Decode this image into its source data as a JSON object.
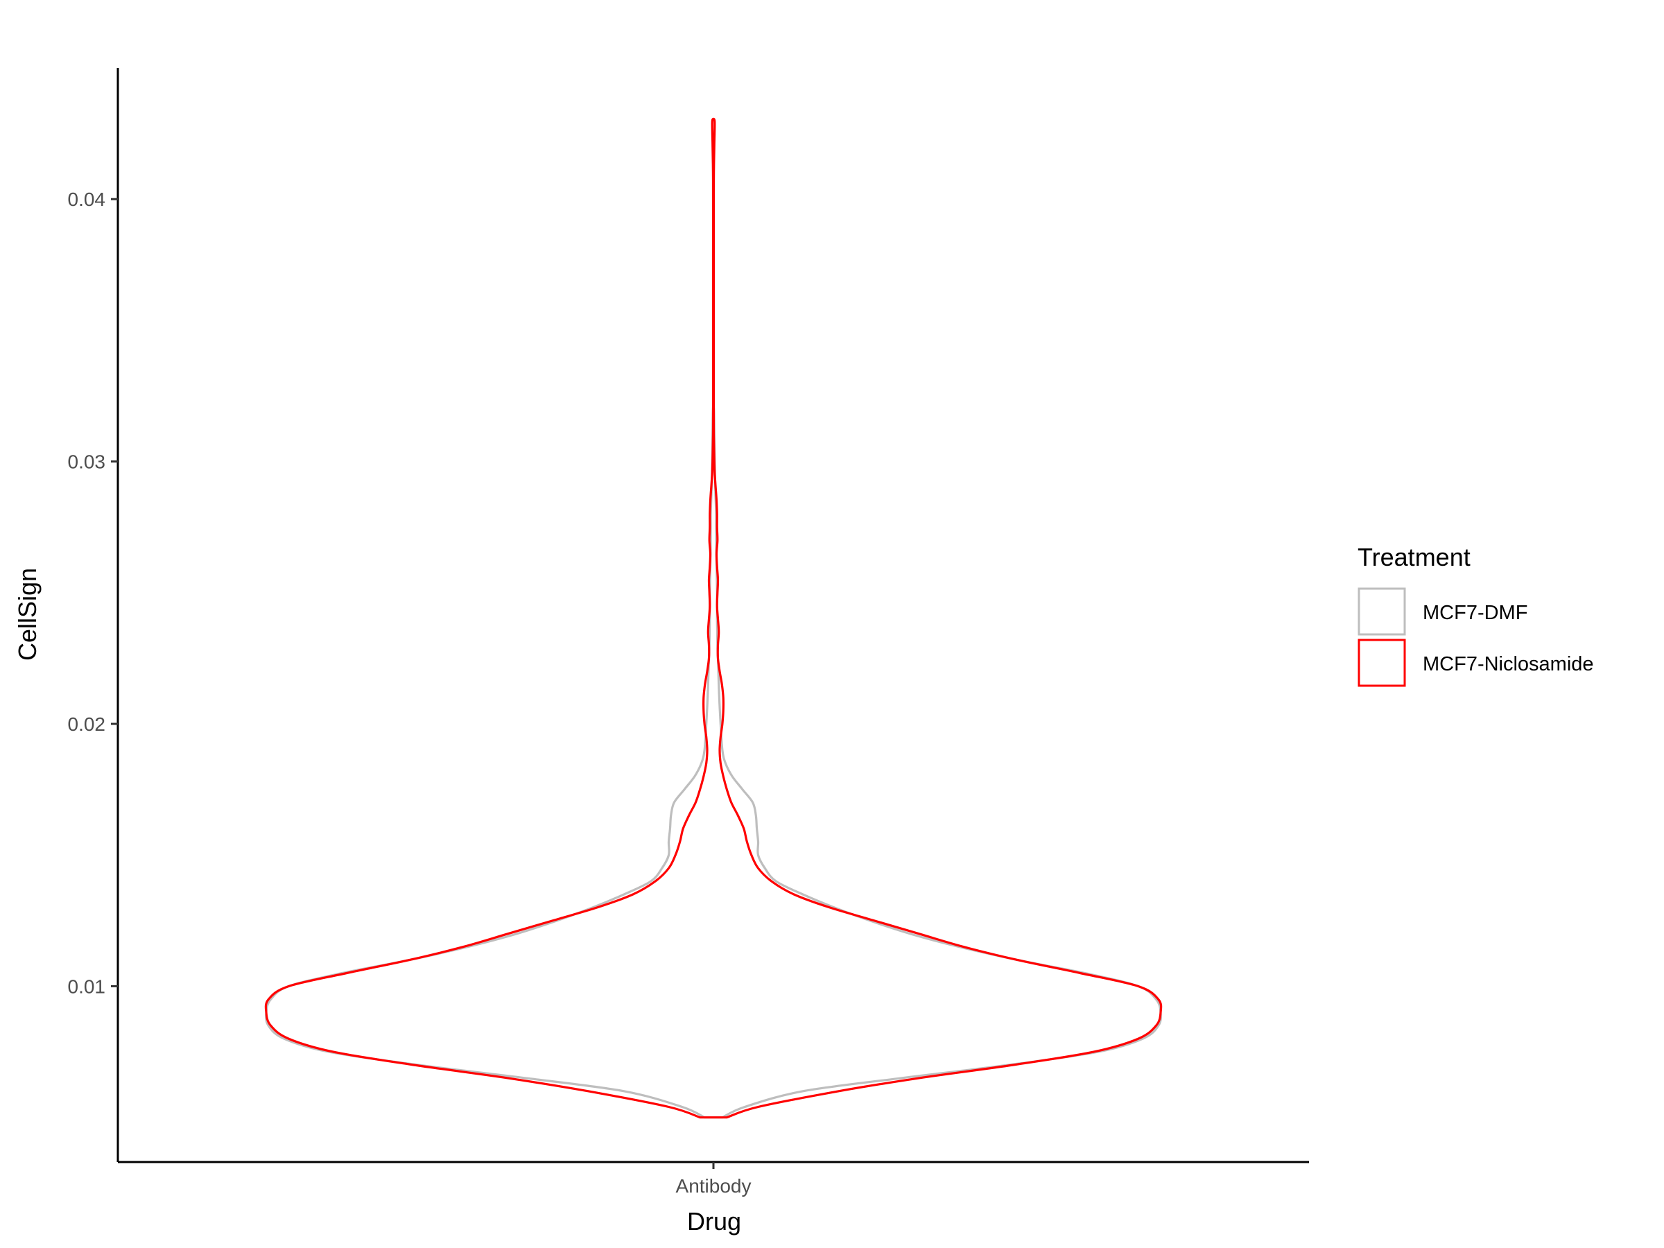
{
  "chart_data": {
    "type": "violin",
    "title": "",
    "xlabel": "Drug",
    "ylabel": "CellSign",
    "categories": [
      "Antibody"
    ],
    "ylim": [
      0.0033,
      0.045
    ],
    "yticks": [
      0.01,
      0.02,
      0.03,
      0.04
    ],
    "ytick_labels": [
      "0.01",
      "0.02",
      "0.03",
      "0.04"
    ],
    "grid": false,
    "legend": {
      "title": "Treatment",
      "placement": "right",
      "entries": [
        "MCF7-DMF",
        "MCF7-Niclosamide"
      ]
    },
    "series": [
      {
        "name": "MCF7-DMF",
        "color": "#bebebe",
        "category": "Antibody",
        "density": [
          [
            0.005,
            0.02
          ],
          [
            0.0054,
            0.07
          ],
          [
            0.006,
            0.2
          ],
          [
            0.0065,
            0.42
          ],
          [
            0.007,
            0.66
          ],
          [
            0.0075,
            0.86
          ],
          [
            0.008,
            0.96
          ],
          [
            0.0085,
            0.995
          ],
          [
            0.009,
            1.0
          ],
          [
            0.0095,
            0.99
          ],
          [
            0.01,
            0.95
          ],
          [
            0.0105,
            0.83
          ],
          [
            0.011,
            0.68
          ],
          [
            0.0115,
            0.55
          ],
          [
            0.012,
            0.44
          ],
          [
            0.0125,
            0.35
          ],
          [
            0.013,
            0.27
          ],
          [
            0.0135,
            0.2
          ],
          [
            0.014,
            0.14
          ],
          [
            0.0145,
            0.115
          ],
          [
            0.015,
            0.1
          ],
          [
            0.0155,
            0.1
          ],
          [
            0.016,
            0.097
          ],
          [
            0.0165,
            0.095
          ],
          [
            0.017,
            0.088
          ],
          [
            0.0175,
            0.065
          ],
          [
            0.018,
            0.042
          ],
          [
            0.0185,
            0.027
          ],
          [
            0.019,
            0.02
          ],
          [
            0.02,
            0.016
          ],
          [
            0.021,
            0.013
          ],
          [
            0.022,
            0.011
          ],
          [
            0.023,
            0.009
          ],
          [
            0.024,
            0.008
          ],
          [
            0.025,
            0.008
          ],
          [
            0.026,
            0.007
          ],
          [
            0.027,
            0.006
          ],
          [
            0.028,
            0.006
          ],
          [
            0.029,
            0.004
          ],
          [
            0.03,
            0.003
          ],
          [
            0.031,
            0.002
          ],
          [
            0.032,
            0.001
          ]
        ]
      },
      {
        "name": "MCF7-Niclosamide",
        "color": "#ff0000",
        "category": "Antibody",
        "density": [
          [
            0.005,
            0.03
          ],
          [
            0.0054,
            0.1
          ],
          [
            0.006,
            0.28
          ],
          [
            0.0065,
            0.46
          ],
          [
            0.007,
            0.67
          ],
          [
            0.0075,
            0.85
          ],
          [
            0.008,
            0.95
          ],
          [
            0.0085,
            0.99
          ],
          [
            0.009,
            1.0
          ],
          [
            0.0095,
            0.995
          ],
          [
            0.01,
            0.95
          ],
          [
            0.0105,
            0.82
          ],
          [
            0.011,
            0.68
          ],
          [
            0.0115,
            0.56
          ],
          [
            0.012,
            0.46
          ],
          [
            0.0125,
            0.36
          ],
          [
            0.013,
            0.26
          ],
          [
            0.0135,
            0.18
          ],
          [
            0.014,
            0.13
          ],
          [
            0.0145,
            0.1
          ],
          [
            0.015,
            0.085
          ],
          [
            0.0155,
            0.075
          ],
          [
            0.016,
            0.068
          ],
          [
            0.0165,
            0.055
          ],
          [
            0.017,
            0.04
          ],
          [
            0.0175,
            0.03
          ],
          [
            0.018,
            0.022
          ],
          [
            0.0185,
            0.016
          ],
          [
            0.019,
            0.014
          ],
          [
            0.0195,
            0.016
          ],
          [
            0.02,
            0.02
          ],
          [
            0.0205,
            0.022
          ],
          [
            0.021,
            0.022
          ],
          [
            0.0215,
            0.019
          ],
          [
            0.022,
            0.014
          ],
          [
            0.0225,
            0.01
          ],
          [
            0.023,
            0.01
          ],
          [
            0.0235,
            0.012
          ],
          [
            0.024,
            0.01
          ],
          [
            0.0245,
            0.008
          ],
          [
            0.025,
            0.009
          ],
          [
            0.0255,
            0.01
          ],
          [
            0.026,
            0.008
          ],
          [
            0.0265,
            0.007
          ],
          [
            0.027,
            0.009
          ],
          [
            0.0275,
            0.008
          ],
          [
            0.028,
            0.008
          ],
          [
            0.0285,
            0.007
          ],
          [
            0.029,
            0.005
          ],
          [
            0.0295,
            0.003
          ],
          [
            0.03,
            0.002
          ],
          [
            0.031,
            0.001
          ],
          [
            0.032,
            0.0008
          ],
          [
            0.034,
            0.0007
          ],
          [
            0.036,
            0.0007
          ],
          [
            0.038,
            0.0007
          ],
          [
            0.04,
            0.0007
          ],
          [
            0.041,
            0.0009
          ],
          [
            0.042,
            0.0018
          ],
          [
            0.0425,
            0.0025
          ],
          [
            0.043,
            0.0025
          ]
        ]
      }
    ]
  }
}
